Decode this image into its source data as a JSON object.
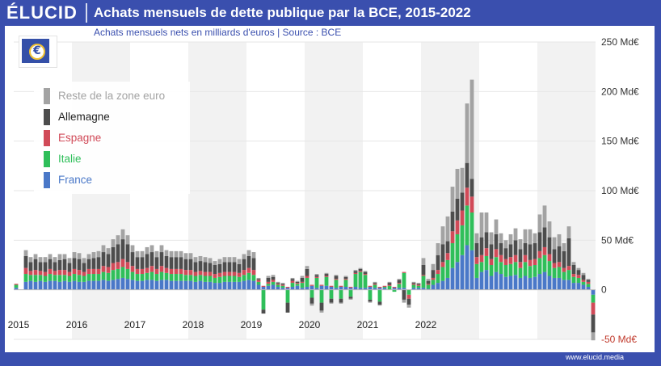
{
  "brand": "ÉLUCID",
  "title": "Achats mensuels de dette publique par la BCE, 2015-2022",
  "subtitle": "Achats mensuels nets en milliards d'euros  |  Source : BCE",
  "watermark": "www.elucid.media",
  "ecb_symbol": "€",
  "chart_data": {
    "type": "bar",
    "stacked": true,
    "xlabels": [
      "2015",
      "2016",
      "2017",
      "2018",
      "2019",
      "2020",
      "2021",
      "2022"
    ],
    "y_ticks": [
      {
        "value": 250,
        "label": "250 Md€"
      },
      {
        "value": 200,
        "label": "200 Md€"
      },
      {
        "value": 150,
        "label": "150 Md€"
      },
      {
        "value": 100,
        "label": "100 Md€"
      },
      {
        "value": 50,
        "label": "50 Md€"
      },
      {
        "value": 0,
        "label": "0"
      },
      {
        "value": -50,
        "label": "-50 Md€"
      }
    ],
    "ylim": [
      -50,
      250
    ],
    "series": [
      {
        "name": "France",
        "color": "#4a78c8",
        "values": [
          2,
          0,
          8,
          9,
          8,
          9,
          8,
          9,
          9,
          8,
          9,
          8,
          9,
          8,
          8,
          9,
          9,
          9,
          10,
          9,
          10,
          11,
          12,
          11,
          10,
          9,
          9,
          10,
          10,
          9,
          10,
          10,
          9,
          9,
          9,
          9,
          9,
          8,
          9,
          8,
          8,
          7,
          7,
          8,
          8,
          8,
          8,
          9,
          10,
          9,
          5,
          3,
          4,
          5,
          3,
          2,
          2,
          3,
          4,
          2,
          3,
          4,
          2,
          4,
          4,
          3,
          2,
          3,
          3,
          2,
          3,
          2,
          2,
          3,
          2,
          2,
          2,
          0,
          2,
          2,
          2,
          0,
          2,
          2,
          2,
          1,
          5,
          7,
          9,
          12,
          22,
          28,
          35,
          45,
          40,
          12,
          18,
          20,
          14,
          18,
          16,
          13,
          14,
          15,
          12,
          14,
          12,
          13,
          16,
          18,
          14,
          12,
          12,
          10,
          10,
          7,
          7,
          5,
          3,
          -5
        ]
      },
      {
        "name": "Italie",
        "color": "#2fbf5a",
        "values": [
          3,
          0,
          8,
          6,
          7,
          6,
          6,
          7,
          6,
          7,
          6,
          6,
          7,
          7,
          6,
          7,
          7,
          7,
          8,
          8,
          10,
          10,
          11,
          10,
          8,
          7,
          7,
          7,
          8,
          7,
          8,
          7,
          7,
          7,
          7,
          6,
          6,
          6,
          6,
          6,
          6,
          5,
          6,
          6,
          6,
          6,
          5,
          6,
          7,
          6,
          3,
          -20,
          2,
          3,
          2,
          2,
          -13,
          4,
          2,
          5,
          9,
          -8,
          10,
          -13,
          9,
          -9,
          8,
          -9,
          7,
          -7,
          13,
          16,
          13,
          -10,
          3,
          -12,
          1,
          4,
          -2,
          4,
          15,
          -5,
          3,
          2,
          12,
          4,
          5,
          9,
          14,
          18,
          25,
          28,
          30,
          40,
          38,
          14,
          10,
          14,
          11,
          15,
          12,
          12,
          12,
          13,
          10,
          14,
          12,
          12,
          16,
          17,
          15,
          10,
          11,
          8,
          10,
          6,
          5,
          3,
          3,
          -8
        ]
      },
      {
        "name": "Espagne",
        "color": "#d14a58",
        "values": [
          1,
          0,
          6,
          4,
          5,
          4,
          4,
          5,
          4,
          5,
          5,
          4,
          5,
          5,
          4,
          5,
          5,
          5,
          6,
          6,
          7,
          7,
          8,
          7,
          6,
          5,
          5,
          5,
          6,
          5,
          6,
          5,
          5,
          5,
          5,
          5,
          5,
          4,
          4,
          4,
          4,
          4,
          4,
          4,
          4,
          4,
          4,
          5,
          5,
          5,
          2,
          1,
          2,
          2,
          1,
          1,
          1,
          2,
          1,
          1,
          2,
          1,
          1,
          1,
          1,
          1,
          1,
          1,
          1,
          1,
          1,
          1,
          1,
          1,
          1,
          1,
          1,
          1,
          1,
          1,
          1,
          -4,
          1,
          1,
          1,
          1,
          2,
          4,
          5,
          7,
          12,
          14,
          15,
          18,
          16,
          7,
          7,
          8,
          6,
          8,
          7,
          6,
          7,
          7,
          6,
          7,
          6,
          6,
          7,
          8,
          7,
          5,
          5,
          4,
          4,
          3,
          3,
          2,
          2,
          -12
        ]
      },
      {
        "name": "Allemagne",
        "color": "#4d4d4d",
        "values": [
          0,
          0,
          12,
          9,
          11,
          9,
          10,
          10,
          9,
          10,
          11,
          9,
          11,
          11,
          9,
          10,
          11,
          12,
          14,
          13,
          16,
          18,
          20,
          18,
          14,
          12,
          12,
          14,
          14,
          12,
          14,
          12,
          12,
          12,
          12,
          11,
          11,
          10,
          10,
          10,
          9,
          9,
          9,
          10,
          10,
          10,
          9,
          11,
          12,
          12,
          1,
          -4,
          4,
          3,
          1,
          1,
          -10,
          2,
          1,
          4,
          7,
          -6,
          2,
          -8,
          2,
          -4,
          3,
          -4,
          2,
          -2,
          2,
          2,
          2,
          -2,
          1,
          -3,
          0,
          2,
          0,
          3,
          -10,
          -6,
          1,
          1,
          10,
          3,
          8,
          15,
          18,
          12,
          20,
          22,
          18,
          25,
          18,
          14,
          18,
          16,
          15,
          15,
          12,
          11,
          13,
          15,
          13,
          12,
          16,
          16,
          19,
          20,
          17,
          14,
          16,
          17,
          28,
          9,
          5,
          5,
          2,
          -18
        ]
      },
      {
        "name": "Reste de la zone euro",
        "color": "#a3a3a3",
        "values": [
          0,
          0,
          6,
          5,
          5,
          5,
          5,
          5,
          5,
          6,
          5,
          5,
          6,
          6,
          5,
          5,
          6,
          6,
          7,
          6,
          8,
          9,
          10,
          9,
          7,
          6,
          6,
          7,
          7,
          6,
          7,
          6,
          6,
          6,
          6,
          6,
          6,
          5,
          5,
          5,
          5,
          4,
          5,
          5,
          5,
          5,
          5,
          5,
          6,
          6,
          1,
          0,
          2,
          2,
          1,
          1,
          0,
          1,
          1,
          2,
          3,
          -2,
          1,
          -2,
          1,
          -1,
          1,
          -1,
          1,
          -1,
          1,
          1,
          1,
          -1,
          1,
          -1,
          0,
          1,
          0,
          1,
          -3,
          -3,
          1,
          1,
          7,
          2,
          6,
          12,
          18,
          25,
          25,
          30,
          25,
          60,
          100,
          10,
          25,
          20,
          12,
          15,
          10,
          8,
          10,
          12,
          10,
          14,
          15,
          10,
          18,
          22,
          16,
          12,
          12,
          8,
          12,
          3,
          2,
          2,
          1,
          -8
        ]
      }
    ]
  }
}
